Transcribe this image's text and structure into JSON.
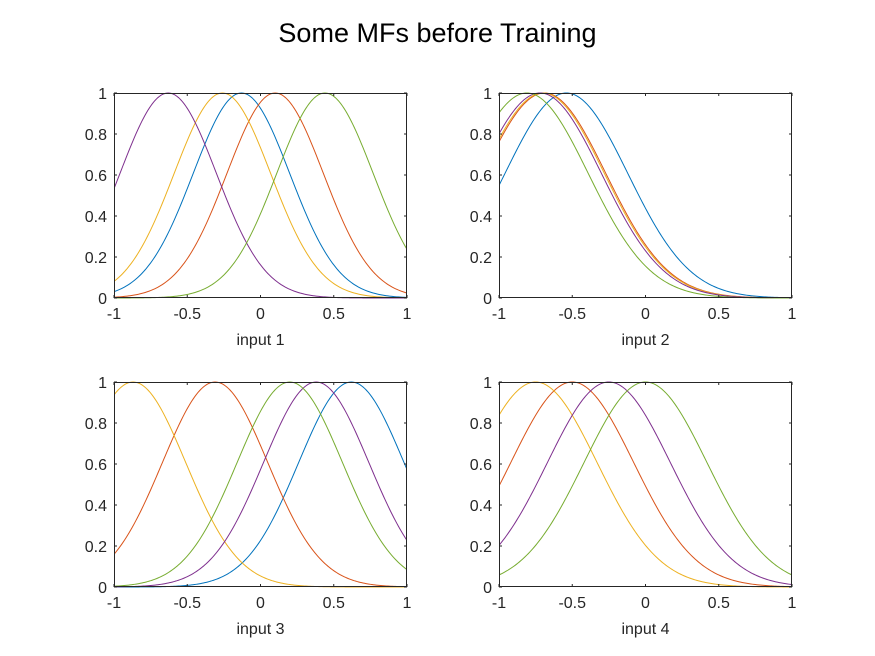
{
  "figure_title": "Some MFs before Training",
  "series_colors": [
    "#0072BD",
    "#D95319",
    "#EDB120",
    "#7E2F8E",
    "#77AC30"
  ],
  "chart_data": [
    {
      "type": "line",
      "xlabel": "input 1",
      "xlim": [
        -1,
        1
      ],
      "ylim": [
        0,
        1
      ],
      "xticks": [
        -1,
        -0.5,
        0,
        0.5,
        1
      ],
      "xticklabels": [
        "-1",
        "-0.5",
        "0",
        "0.5",
        "1"
      ],
      "yticks": [
        0,
        0.2,
        0.4,
        0.6,
        0.8,
        1
      ],
      "yticklabels": [
        "0",
        "0.2",
        "0.4",
        "0.6",
        "0.8",
        "1"
      ],
      "grid": false,
      "series": [
        {
          "color": "#0072BD",
          "function": "gaussian",
          "center": -0.13,
          "sigma": 0.33
        },
        {
          "color": "#D95319",
          "function": "gaussian",
          "center": 0.1,
          "sigma": 0.33
        },
        {
          "color": "#EDB120",
          "function": "gaussian",
          "center": -0.26,
          "sigma": 0.33
        },
        {
          "color": "#7E2F8E",
          "function": "gaussian",
          "center": -0.63,
          "sigma": 0.33
        },
        {
          "color": "#77AC30",
          "function": "gaussian",
          "center": 0.44,
          "sigma": 0.33
        }
      ]
    },
    {
      "type": "line",
      "xlabel": "input 2",
      "xlim": [
        -1,
        1
      ],
      "ylim": [
        0,
        1
      ],
      "xticks": [
        -1,
        -0.5,
        0,
        0.5,
        1
      ],
      "xticklabels": [
        "-1",
        "-0.5",
        "0",
        "0.5",
        "1"
      ],
      "yticks": [
        0,
        0.2,
        0.4,
        0.6,
        0.8,
        1
      ],
      "yticklabels": [
        "0",
        "0.2",
        "0.4",
        "0.6",
        "0.8",
        "1"
      ],
      "grid": false,
      "series": [
        {
          "color": "#0072BD",
          "function": "gaussian",
          "center": -0.54,
          "sigma": 0.42
        },
        {
          "color": "#D95319",
          "function": "gaussian",
          "center": -0.69,
          "sigma": 0.42
        },
        {
          "color": "#EDB120",
          "function": "gaussian",
          "center": -0.7,
          "sigma": 0.42
        },
        {
          "color": "#7E2F8E",
          "function": "gaussian",
          "center": -0.72,
          "sigma": 0.42
        },
        {
          "color": "#77AC30",
          "function": "gaussian",
          "center": -0.81,
          "sigma": 0.42
        }
      ]
    },
    {
      "type": "line",
      "xlabel": "input 3",
      "xlim": [
        -1,
        1
      ],
      "ylim": [
        0,
        1
      ],
      "xticks": [
        -1,
        -0.5,
        0,
        0.5,
        1
      ],
      "xticklabels": [
        "-1",
        "-0.5",
        "0",
        "0.5",
        "1"
      ],
      "yticks": [
        0,
        0.2,
        0.4,
        0.6,
        0.8,
        1
      ],
      "yticklabels": [
        "0",
        "0.2",
        "0.4",
        "0.6",
        "0.8",
        "1"
      ],
      "grid": false,
      "series": [
        {
          "color": "#0072BD",
          "function": "gaussian",
          "center": 0.62,
          "sigma": 0.36
        },
        {
          "color": "#D95319",
          "function": "gaussian",
          "center": -0.31,
          "sigma": 0.36
        },
        {
          "color": "#EDB120",
          "function": "gaussian",
          "center": -0.87,
          "sigma": 0.36
        },
        {
          "color": "#7E2F8E",
          "function": "gaussian",
          "center": 0.38,
          "sigma": 0.36
        },
        {
          "color": "#77AC30",
          "function": "gaussian",
          "center": 0.2,
          "sigma": 0.36
        }
      ]
    },
    {
      "type": "line",
      "xlabel": "input 4",
      "xlim": [
        -1,
        1
      ],
      "ylim": [
        0,
        1
      ],
      "xticks": [
        -1,
        -0.5,
        0,
        0.5,
        1
      ],
      "xticklabels": [
        "-1",
        "-0.5",
        "0",
        "0.5",
        "1"
      ],
      "yticks": [
        0,
        0.2,
        0.4,
        0.6,
        0.8,
        1
      ],
      "yticklabels": [
        "0",
        "0.2",
        "0.4",
        "0.6",
        "0.8",
        "1"
      ],
      "grid": false,
      "series": [
        {
          "color": "#D95319",
          "function": "gaussian",
          "center": -0.5,
          "sigma": 0.42
        },
        {
          "color": "#EDB120",
          "function": "gaussian",
          "center": -0.75,
          "sigma": 0.42
        },
        {
          "color": "#7E2F8E",
          "function": "gaussian",
          "center": -0.25,
          "sigma": 0.42
        },
        {
          "color": "#77AC30",
          "function": "gaussian",
          "center": 0.0,
          "sigma": 0.42
        }
      ]
    }
  ]
}
